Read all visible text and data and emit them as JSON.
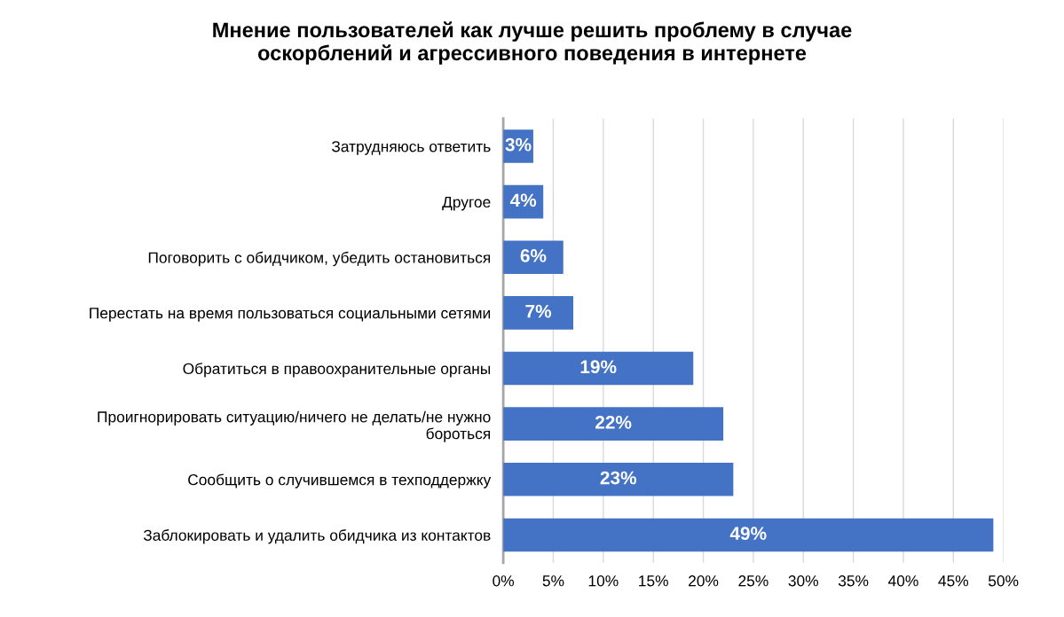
{
  "chart_data": {
    "type": "bar",
    "orientation": "horizontal",
    "title": "Мнение пользователей как лучше решить проблему в случае\nоскорблений и агрессивного поведения в интернете",
    "categories": [
      "Затрудняюсь ответить",
      "Другое",
      "Поговорить с обидчиком, убедить остановиться",
      "Перестать на время пользоваться социальными сетями",
      "Обратиться в правоохранительные органы",
      "Проигнорировать ситуацию/ничего не делать/не нужно\nбороться",
      "Сообщить о случившемся в техподдержку",
      "Заблокировать и удалить обидчика из контактов"
    ],
    "values": [
      3,
      4,
      6,
      7,
      19,
      22,
      23,
      49
    ],
    "value_labels": [
      "3%",
      "4%",
      "6%",
      "7%",
      "19%",
      "22%",
      "23%",
      "49%"
    ],
    "color": "#4472c4",
    "xlim": [
      0,
      50
    ],
    "xticks": [
      {
        "value": 0,
        "label": "0%"
      },
      {
        "value": 5,
        "label": "5%"
      },
      {
        "value": 10,
        "label": "10%"
      },
      {
        "value": 15,
        "label": "15%"
      },
      {
        "value": 20,
        "label": "20%"
      },
      {
        "value": 25,
        "label": "25%"
      },
      {
        "value": 30,
        "label": "30%"
      },
      {
        "value": 35,
        "label": "35%"
      },
      {
        "value": 40,
        "label": "40%"
      },
      {
        "value": 45,
        "label": "45%"
      },
      {
        "value": 50,
        "label": "50%"
      }
    ],
    "grid": "x"
  }
}
